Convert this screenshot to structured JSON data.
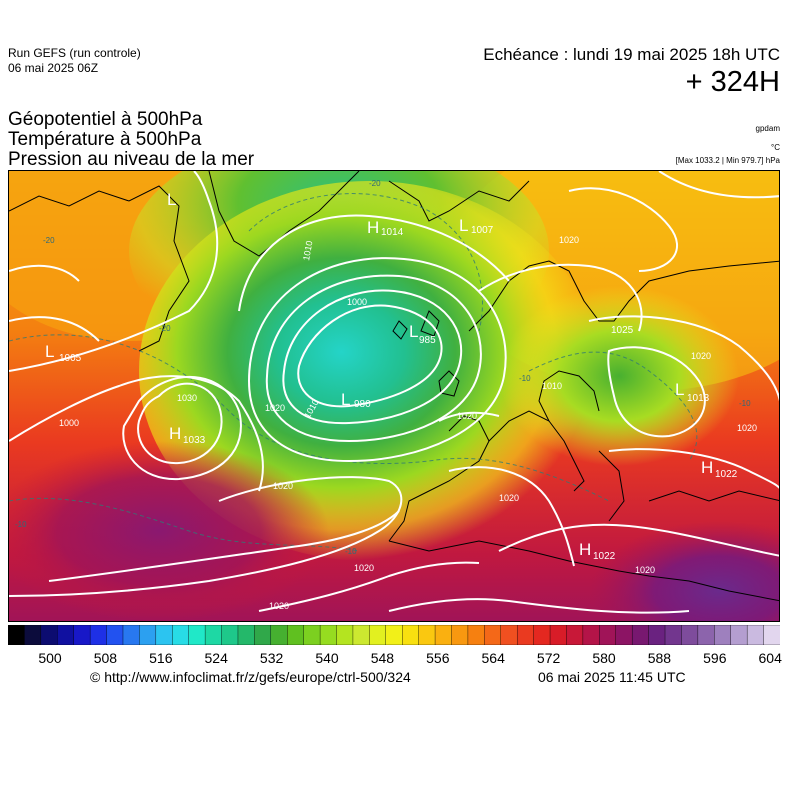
{
  "header": {
    "run_name": "Run GEFS (run controle)",
    "run_date": "06 mai 2025 06Z",
    "valid_time": "Echéance : lundi 19 mai 2025 18h UTC",
    "lead_time": "+ 324H",
    "params": [
      "Géopotentiel à 500hPa",
      "Température à 500hPa",
      "Pression au niveau de la mer"
    ],
    "unit_geopotential": "gpdam",
    "unit_temperature": "°C",
    "max_min": "[Max 1033.2 | Min 979.7] hPa"
  },
  "map": {
    "pressure_centers": [
      {
        "type": "H",
        "value": "1014"
      },
      {
        "type": "L",
        "value": "1007"
      },
      {
        "type": "L",
        "value": "985"
      },
      {
        "type": "L",
        "value": "980"
      },
      {
        "type": "L",
        "value": "1005"
      },
      {
        "type": "H",
        "value": "1033"
      },
      {
        "type": "L",
        "value": "1013"
      },
      {
        "type": "H",
        "value": "1022"
      },
      {
        "type": "H",
        "value": "1022"
      },
      {
        "type": "H",
        "value": "1025"
      },
      {
        "type": "L",
        "value": ""
      }
    ],
    "isobar_labels": [
      "1010",
      "1000",
      "1030",
      "1020",
      "1010",
      "1000",
      "1020",
      "1020",
      "1020",
      "1020",
      "1020",
      "1020",
      "1020",
      "1020",
      "1010",
      "1020"
    ],
    "temperature_labels": [
      "-20",
      "-20",
      "-10",
      "-10",
      "-10",
      "-10",
      "-20"
    ]
  },
  "colorbar": {
    "tick_labels": [
      "500",
      "508",
      "516",
      "524",
      "532",
      "540",
      "548",
      "556",
      "564",
      "572",
      "580",
      "588",
      "596",
      "604"
    ],
    "colors": [
      "#000000",
      "#0c0c3c",
      "#0c0c70",
      "#1010a0",
      "#1818c8",
      "#1e30e6",
      "#2252f0",
      "#2878f0",
      "#2ca0f0",
      "#2cc4f0",
      "#28dce6",
      "#20e8c8",
      "#1ed8a4",
      "#1ec88a",
      "#24b86a",
      "#30a84a",
      "#46b030",
      "#60c020",
      "#7cd020",
      "#96dc20",
      "#b4e420",
      "#cce830",
      "#e2f020",
      "#f2f018",
      "#f8e010",
      "#fac810",
      "#fab010",
      "#f89810",
      "#f68010",
      "#f46818",
      "#f05020",
      "#ea3a20",
      "#e42820",
      "#d81c28",
      "#c81838",
      "#b41448",
      "#a01458",
      "#8c1464",
      "#781870",
      "#6a2280",
      "#72368e",
      "#7e4c9c",
      "#8c64ac",
      "#9e80be",
      "#b49ed0",
      "#cabae0",
      "#e2d6ee"
    ]
  },
  "credits": {
    "url": "© http://www.infoclimat.fr/z/gefs/europe/ctrl-500/324",
    "generated": "06 mai 2025 11:45 UTC"
  }
}
